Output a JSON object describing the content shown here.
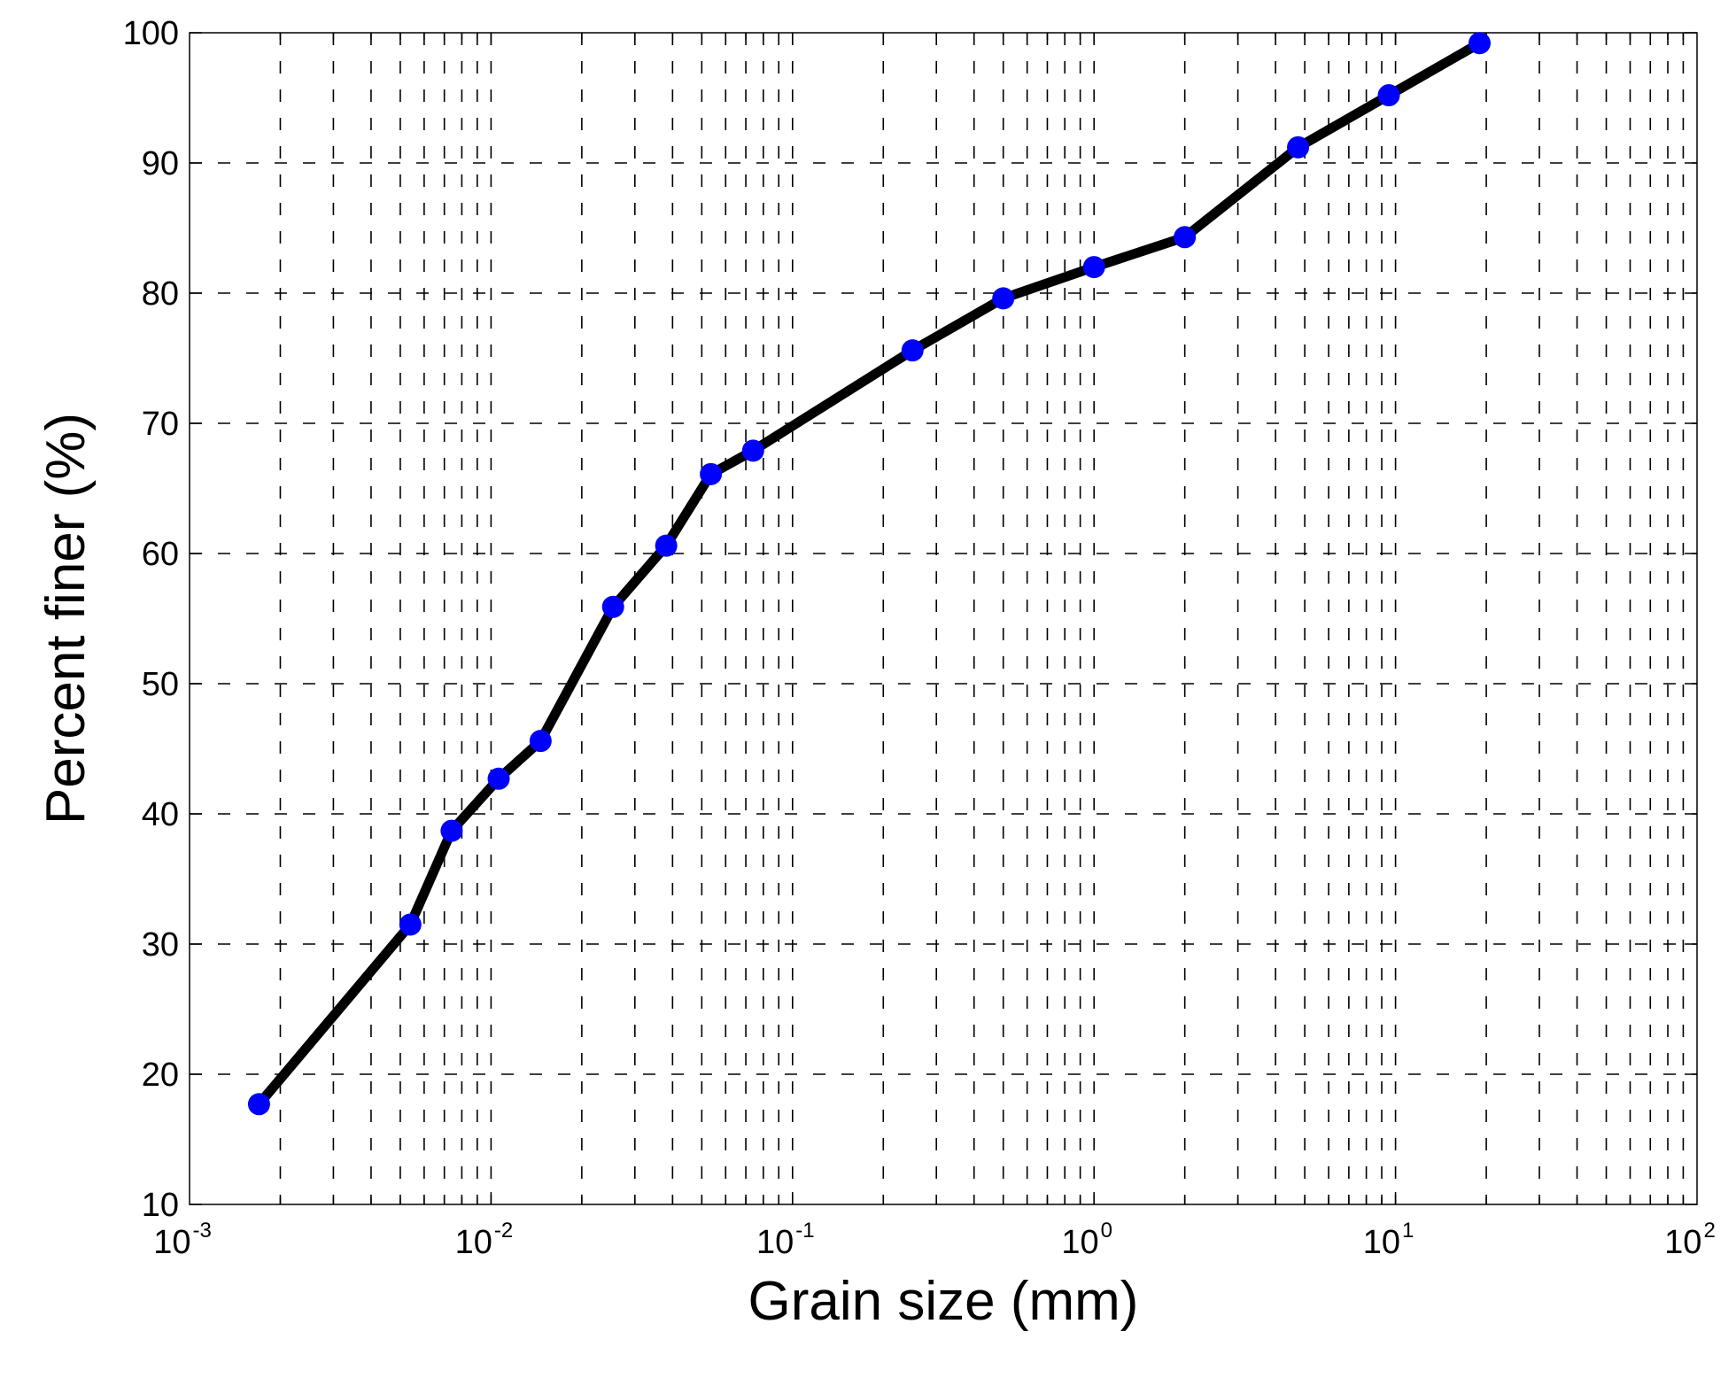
{
  "chart_data": {
    "type": "line",
    "title": "",
    "xlabel": "Grain size (mm)",
    "ylabel": "Percent finer (%)",
    "xscale": "log",
    "xlim": [
      0.001,
      100
    ],
    "ylim": [
      10,
      100
    ],
    "grid": true,
    "grid_style": "dashed",
    "x_tick_labels": [
      {
        "base": "10",
        "exp": "-3"
      },
      {
        "base": "10",
        "exp": "-2"
      },
      {
        "base": "10",
        "exp": "-1"
      },
      {
        "base": "10",
        "exp": "0"
      },
      {
        "base": "10",
        "exp": "1"
      },
      {
        "base": "10",
        "exp": "2"
      }
    ],
    "y_ticks": [
      10,
      20,
      30,
      40,
      50,
      60,
      70,
      80,
      90,
      100
    ],
    "line_color": "#000000",
    "marker_color": "#0000ff",
    "series": [
      {
        "x": [
          0.0017,
          0.0054,
          0.0074,
          0.0106,
          0.0146,
          0.0254,
          0.0381,
          0.0536,
          0.074,
          0.25,
          0.5,
          1.0,
          2.0,
          4.75,
          9.5,
          19.0
        ],
        "y": [
          17.7,
          31.5,
          38.7,
          42.7,
          45.6,
          55.9,
          60.6,
          66.1,
          67.9,
          75.6,
          79.6,
          82.0,
          84.3,
          91.2,
          95.2,
          99.2
        ]
      }
    ]
  }
}
